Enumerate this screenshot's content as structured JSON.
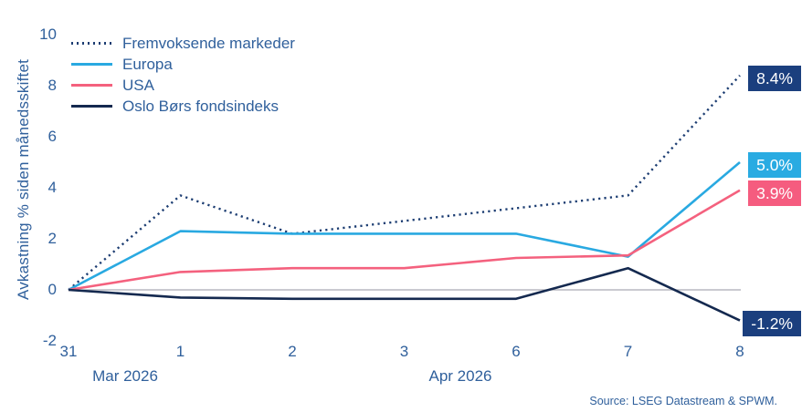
{
  "chart_data": {
    "type": "line",
    "title": "",
    "xlabel": "",
    "ylabel": "Avkastning % siden månedsskiftet",
    "ylim": [
      -2,
      10
    ],
    "yticks": [
      10,
      8,
      6,
      4,
      2,
      0,
      -2
    ],
    "grid": false,
    "zero_line": true,
    "legend_position": "top-left",
    "x_tick_labels": [
      "31",
      "1",
      "2",
      "3",
      "6",
      "7",
      "8"
    ],
    "x_month_labels": [
      {
        "label": "Mar 2026"
      },
      {
        "label": "Apr 2026"
      }
    ],
    "series": [
      {
        "name": "Fremvoksende markeder",
        "style": "dotted",
        "color": "#1C3D72",
        "label_bg": "#1B3F7E",
        "values": [
          0,
          3.7,
          2.2,
          2.7,
          3.2,
          3.7,
          8.4
        ],
        "end_label": "8.4%"
      },
      {
        "name": "Europa",
        "style": "solid",
        "color": "#29A9E1",
        "label_bg": "#29ABE2",
        "values": [
          0,
          2.3,
          2.2,
          2.2,
          2.2,
          1.3,
          5.0
        ],
        "end_label": "5.0%"
      },
      {
        "name": "USA",
        "style": "solid",
        "color": "#F4617E",
        "label_bg": "#F55C7F",
        "values": [
          0,
          0.7,
          0.85,
          0.85,
          1.25,
          1.35,
          3.9
        ],
        "end_label": "3.9%"
      },
      {
        "name": "Oslo Børs fondsindeks",
        "style": "solid",
        "color": "#14294F",
        "label_bg": "#1B3F7E",
        "values": [
          0,
          -0.3,
          -0.35,
          -0.35,
          -0.35,
          0.85,
          -1.2
        ],
        "end_label": "-1.2%"
      }
    ]
  },
  "colors": {
    "axis_text": "#30609C",
    "zero_line": "#ABABB3",
    "background": "#FFFFFF"
  },
  "source": "Source: LSEG Datastream & SPWM."
}
